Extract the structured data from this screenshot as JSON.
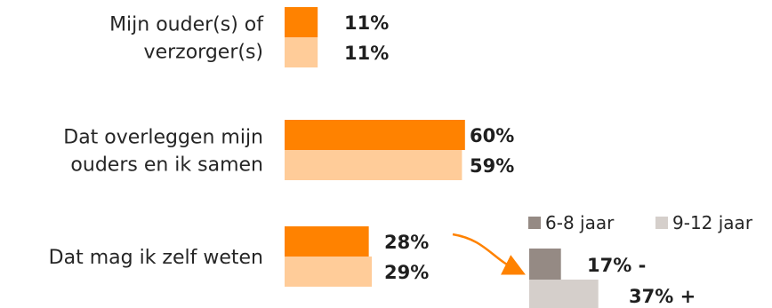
{
  "chart_data": [
    {
      "type": "bar",
      "orientation": "horizontal",
      "categories": [
        [
          "Mijn ouder(s) of",
          "verzorger(s)"
        ],
        [
          "Dat overleggen mijn",
          "ouders en ik samen"
        ],
        [
          "Dat mag ik zelf weten"
        ]
      ],
      "series": [
        {
          "values": [
            11,
            60,
            28
          ],
          "labels": [
            "11%",
            "60%",
            "28%"
          ]
        },
        {
          "values": [
            11,
            59,
            29
          ],
          "labels": [
            "11%",
            "59%",
            "29%"
          ]
        }
      ],
      "unit": "%",
      "xlim": [
        0,
        100
      ],
      "grid": false,
      "legend": "none"
    },
    {
      "type": "bar",
      "orientation": "horizontal",
      "series": [
        {
          "name": "6-8 jaar",
          "values": [
            17
          ],
          "labels": [
            "17% -"
          ]
        },
        {
          "name": "9-12 jaar",
          "values": [
            37
          ],
          "labels": [
            "37% +"
          ]
        }
      ],
      "unit": "%",
      "grid": false,
      "legend": "top",
      "annotation": "arrow from \"Dat mag ik zelf weten\" to age breakdown"
    }
  ],
  "colors": {
    "series_dark": "#ff8200",
    "series_light": "#ffcc99",
    "age_6_8": "#958a84",
    "age_9_12": "#d5cfcb",
    "arrow": "#ff8200"
  }
}
